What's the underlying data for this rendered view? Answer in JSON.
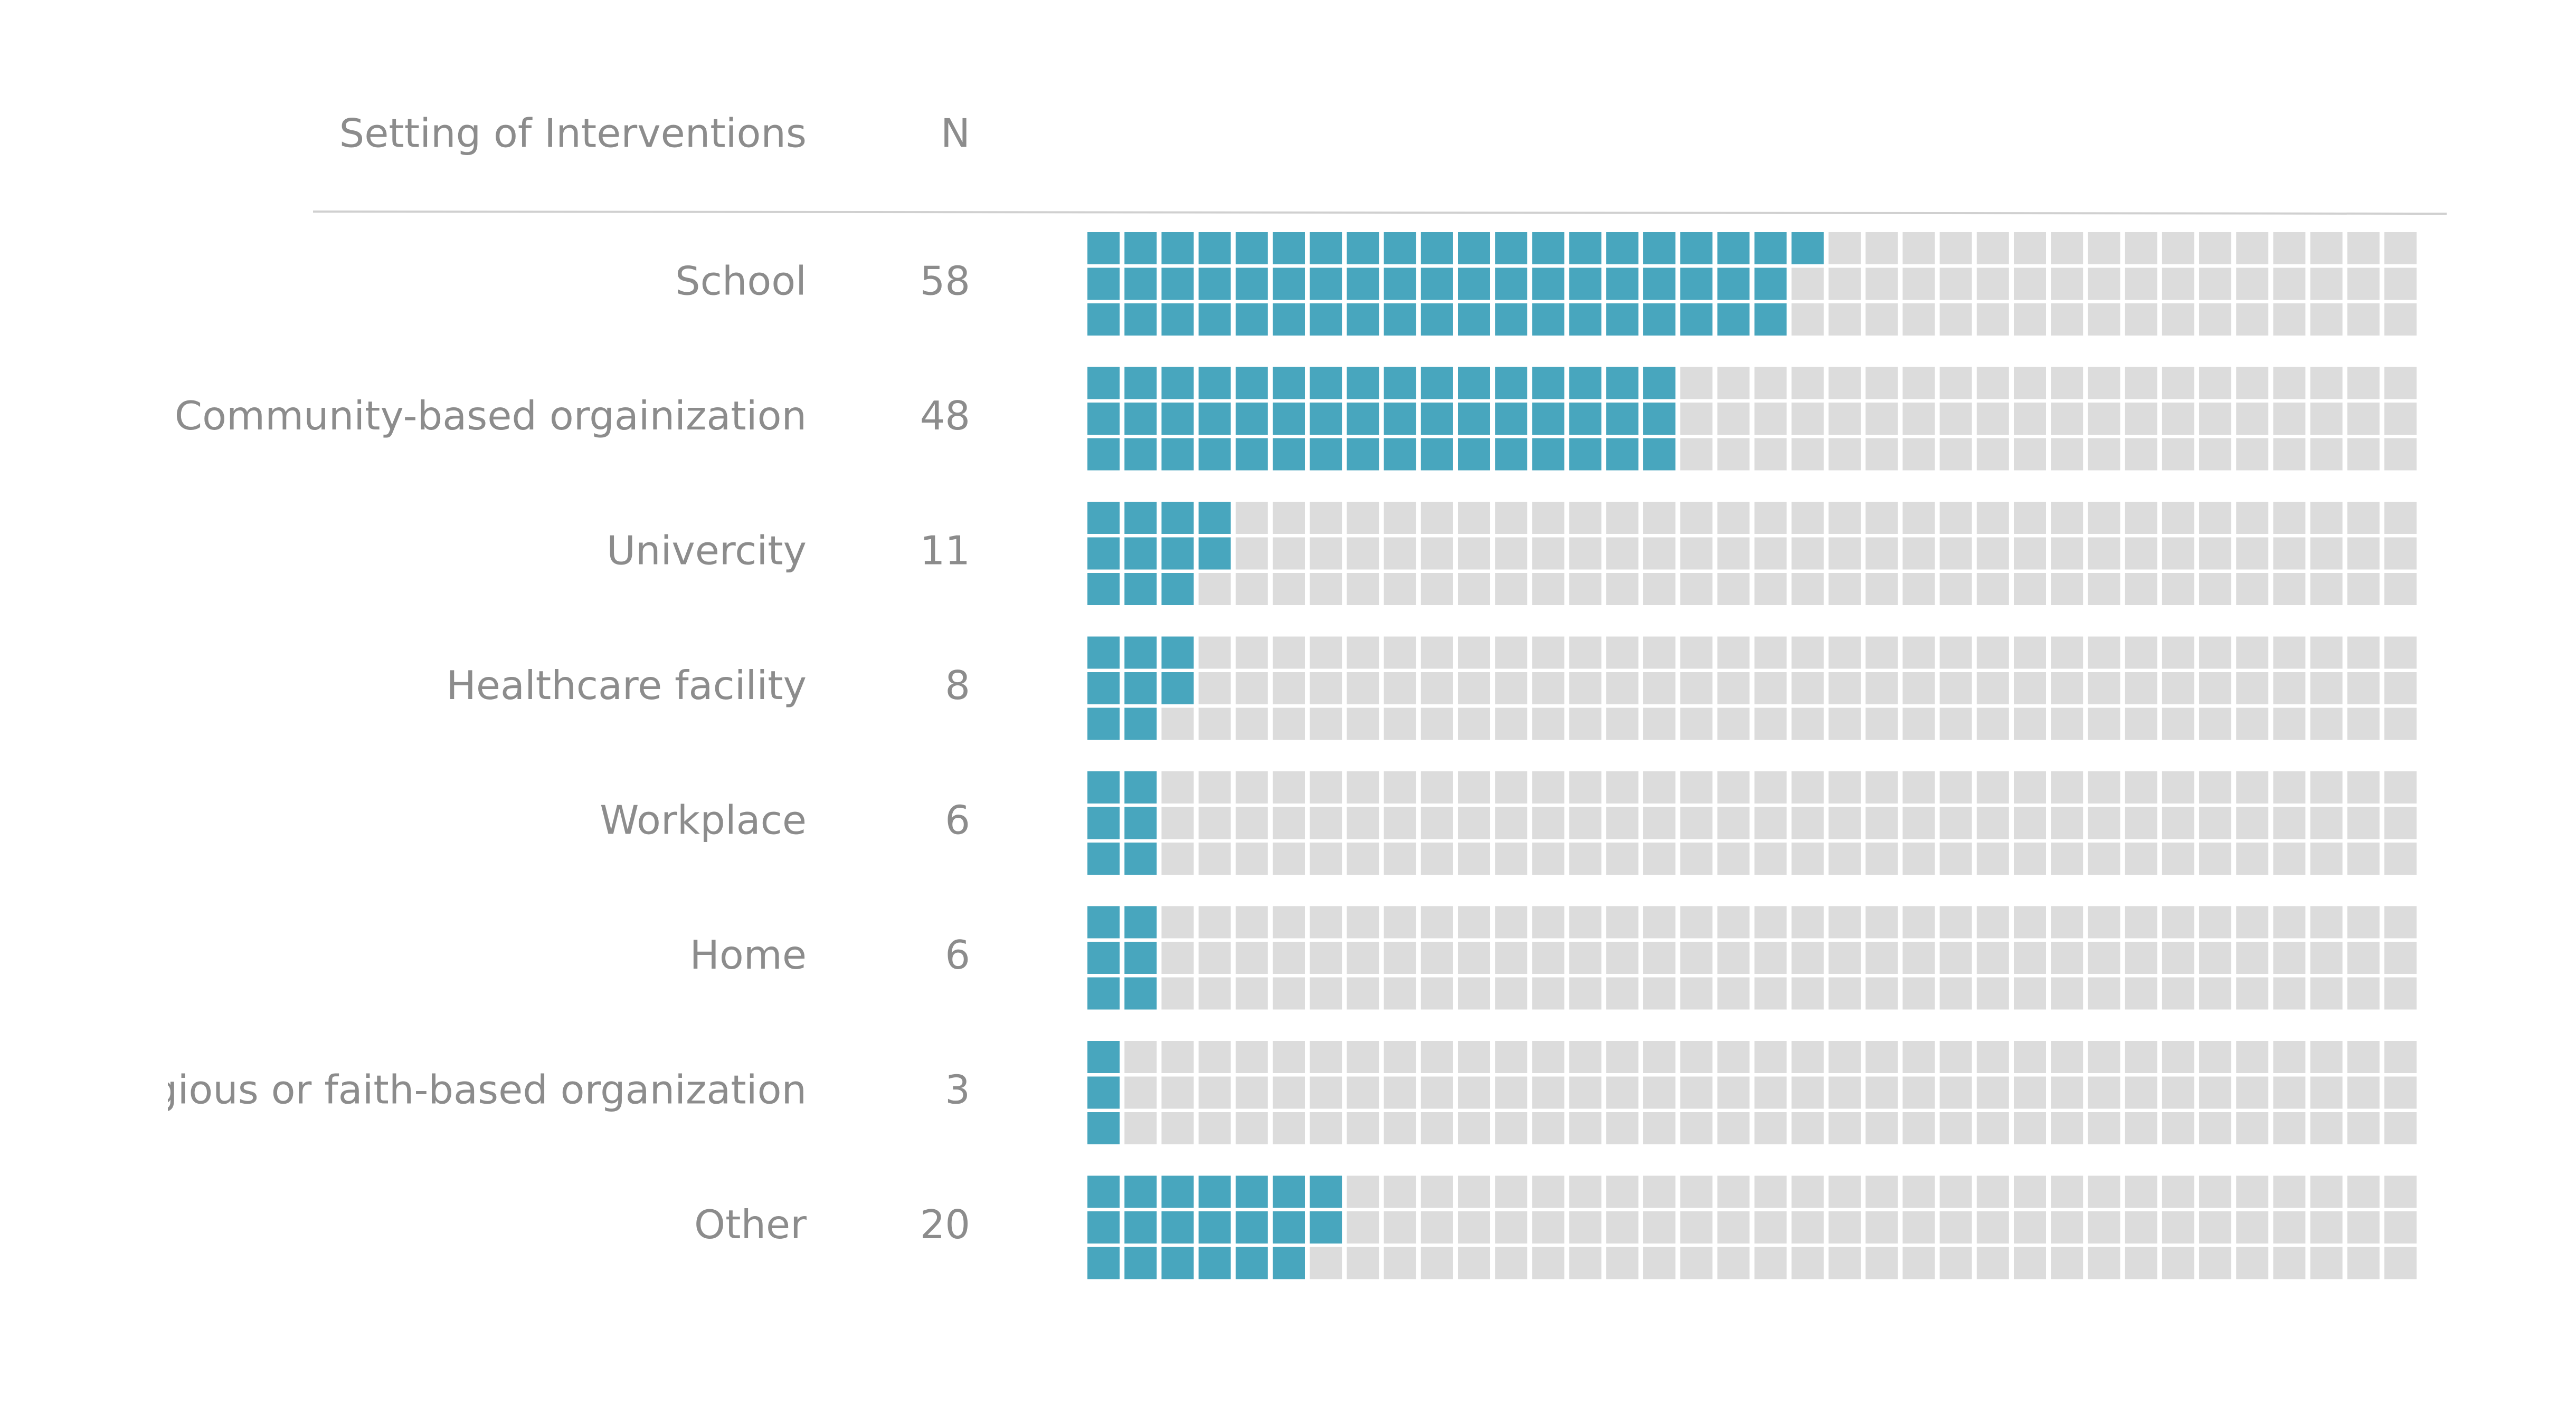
{
  "chart_data": {
    "type": "waffle",
    "header": {
      "category": "Setting of Interventions",
      "n": "N"
    },
    "grid": {
      "rows": 3,
      "columns": 36
    },
    "categories": [
      "School",
      "Community-based orgainization",
      "Univercity",
      "Healthcare facility",
      "Workplace",
      "Home",
      "Religious or faith-based organization",
      "Other"
    ],
    "values": [
      58,
      48,
      11,
      8,
      6,
      6,
      3,
      20
    ],
    "colors": {
      "filled": "#48a6be",
      "empty": "#dcdcdc",
      "text": "#8c8c8c",
      "rule": "#d0d0d0"
    }
  }
}
